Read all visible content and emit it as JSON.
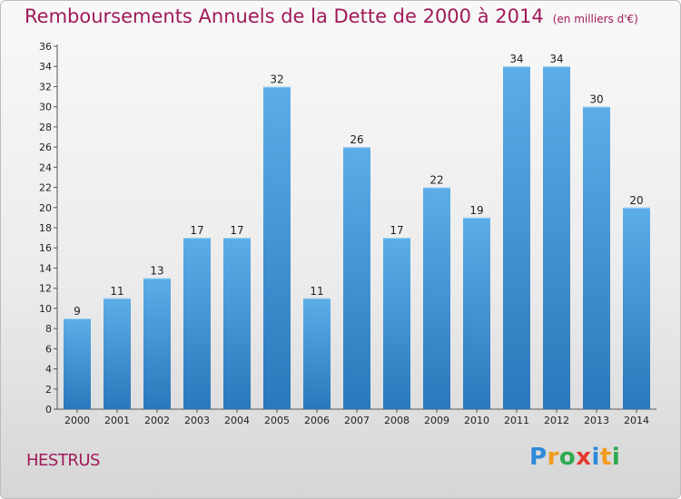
{
  "title": "Remboursements Annuels de la Dette de 2000 à 2014",
  "unit": "(en milliers d'€)",
  "commune": "HESTRUS",
  "logo": [
    "P",
    "r",
    "o",
    "x",
    "i",
    "t",
    "i"
  ],
  "logo_colors": [
    "#2e8ad8",
    "#f29a1d",
    "#2fa84f",
    "#e53a2e",
    "#2e8ad8",
    "#f29a1d",
    "#2fa84f"
  ],
  "colors": {
    "bar_light": "#5dade8",
    "bar_dark": "#2a77bb",
    "title": "#a01a5a"
  },
  "chart_data": {
    "type": "bar",
    "categories": [
      "2000",
      "2001",
      "2002",
      "2003",
      "2004",
      "2005",
      "2006",
      "2007",
      "2008",
      "2009",
      "2010",
      "2011",
      "2012",
      "2013",
      "2014"
    ],
    "values": [
      9,
      11,
      13,
      17,
      17,
      32,
      11,
      26,
      17,
      22,
      19,
      34,
      34,
      30,
      20
    ],
    "ylim": [
      0,
      36
    ],
    "yticks": [
      0,
      2,
      4,
      6,
      8,
      10,
      12,
      14,
      16,
      18,
      20,
      22,
      24,
      26,
      28,
      30,
      32,
      34,
      36
    ],
    "grid": false
  }
}
